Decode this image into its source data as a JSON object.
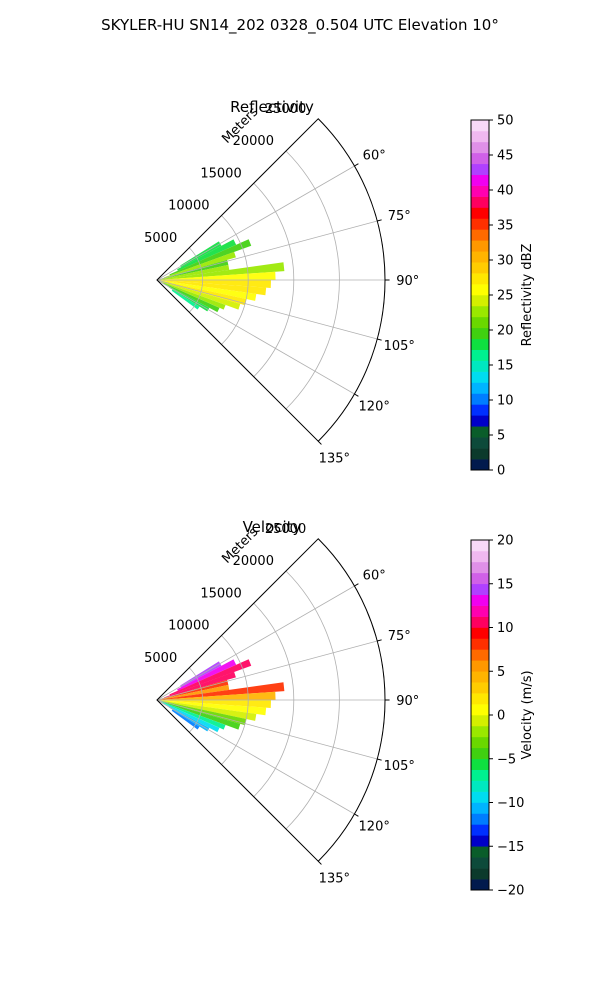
{
  "suptitle": "SKYLER-HU  SN14_202  0328_0.504 UTC Elevation 10°",
  "radial_label": "Meters",
  "chart_data": [
    {
      "type": "heatmap",
      "title": "Reflectivity",
      "colorbar_label": "Reflectivity dBZ",
      "colorbar_range": [
        0,
        50
      ],
      "colorbar_ticks": [
        "0",
        "5",
        "10",
        "15",
        "20",
        "25",
        "30",
        "35",
        "40",
        "45",
        "50"
      ],
      "colorbar_colors": [
        "#011a4d",
        "#0b3a2c",
        "#0d4a3a",
        "#0a5d2a",
        "#0000c8",
        "#0030ff",
        "#007dff",
        "#00b4ff",
        "#00dcf0",
        "#00e8c0",
        "#00f090",
        "#10e040",
        "#40d010",
        "#6ad800",
        "#9ae800",
        "#d4f000",
        "#ffff00",
        "#ffe800",
        "#ffcc00",
        "#ffb400",
        "#ff9800",
        "#ff6a00",
        "#ff3000",
        "#ff0000",
        "#ff0060",
        "#ff00b0",
        "#f000f0",
        "#b040ff",
        "#d060e8",
        "#e090e8",
        "#f0b8f0",
        "#f8d8f8"
      ],
      "theta_ticks": [
        "60°",
        "75°",
        "90°",
        "105°",
        "120°",
        "135°"
      ],
      "theta_values": [
        60,
        75,
        90,
        105,
        120,
        135
      ],
      "theta_range": [
        45,
        135
      ],
      "r_ticks": [
        "5000",
        "10000",
        "15000",
        "20000",
        "25000"
      ],
      "r_values": [
        5000,
        10000,
        15000,
        20000,
        25000
      ],
      "r_max": 25000,
      "grid": true,
      "echo_extent_m": [
        {
          "theta": 60,
          "r": [
            3000,
            8000
          ],
          "value": 18
        },
        {
          "theta": 64,
          "r": [
            2500,
            9500
          ],
          "value": 18
        },
        {
          "theta": 68,
          "r": [
            1500,
            11000
          ],
          "value": 20
        },
        {
          "theta": 72,
          "r": [
            800,
            9000
          ],
          "value": 22
        },
        {
          "theta": 76,
          "r": [
            500,
            8000
          ],
          "value": 20
        },
        {
          "theta": 80,
          "r": [
            300,
            8000
          ],
          "value": 22
        },
        {
          "theta": 84,
          "r": [
            200,
            14000
          ],
          "value": 22
        },
        {
          "theta": 88,
          "r": [
            100,
            13000
          ],
          "value": 25
        },
        {
          "theta": 92,
          "r": [
            100,
            12500
          ],
          "value": 28
        },
        {
          "theta": 96,
          "r": [
            100,
            12000
          ],
          "value": 28
        },
        {
          "theta": 100,
          "r": [
            100,
            11000
          ],
          "value": 26
        },
        {
          "theta": 104,
          "r": [
            200,
            10000
          ],
          "value": 27
        },
        {
          "theta": 108,
          "r": [
            300,
            9500
          ],
          "value": 24
        },
        {
          "theta": 112,
          "r": [
            500,
            8000
          ],
          "value": 22
        },
        {
          "theta": 116,
          "r": [
            800,
            7500
          ],
          "value": 20
        },
        {
          "theta": 120,
          "r": [
            1500,
            6500
          ],
          "value": 18
        },
        {
          "theta": 124,
          "r": [
            2000,
            5500
          ],
          "value": 16
        }
      ]
    },
    {
      "type": "heatmap",
      "title": "Velocity",
      "colorbar_label": "Velocity (m/s)",
      "colorbar_range": [
        -20,
        20
      ],
      "colorbar_ticks": [
        "−20",
        "−15",
        "−10",
        "−5",
        "0",
        "5",
        "10",
        "15",
        "20"
      ],
      "colorbar_colors": [
        "#011a4d",
        "#0b3a2c",
        "#0d4a3a",
        "#0a5d2a",
        "#0000c8",
        "#0030ff",
        "#007dff",
        "#00b4ff",
        "#00dcf0",
        "#00e8c0",
        "#00f090",
        "#10e040",
        "#40d010",
        "#6ad800",
        "#9ae800",
        "#d4f000",
        "#ffff00",
        "#ffe800",
        "#ffcc00",
        "#ffb400",
        "#ff9800",
        "#ff6a00",
        "#ff3000",
        "#ff0000",
        "#ff0060",
        "#ff00b0",
        "#f000f0",
        "#b040ff",
        "#d060e8",
        "#e090e8",
        "#f0b8f0",
        "#f8d8f8"
      ],
      "theta_ticks": [
        "60°",
        "75°",
        "90°",
        "105°",
        "120°",
        "135°"
      ],
      "theta_values": [
        60,
        75,
        90,
        105,
        120,
        135
      ],
      "theta_range": [
        45,
        135
      ],
      "r_ticks": [
        "5000",
        "10000",
        "15000",
        "20000",
        "25000"
      ],
      "r_values": [
        5000,
        10000,
        15000,
        20000,
        25000
      ],
      "r_max": 25000,
      "grid": true,
      "echo_extent_m": [
        {
          "theta": 60,
          "r": [
            3000,
            8000
          ],
          "value": 14
        },
        {
          "theta": 64,
          "r": [
            2500,
            9500
          ],
          "value": 13
        },
        {
          "theta": 68,
          "r": [
            1500,
            11000
          ],
          "value": 11
        },
        {
          "theta": 72,
          "r": [
            800,
            9000
          ],
          "value": 10
        },
        {
          "theta": 76,
          "r": [
            500,
            8000
          ],
          "value": 8
        },
        {
          "theta": 80,
          "r": [
            300,
            8000
          ],
          "value": 6
        },
        {
          "theta": 84,
          "r": [
            200,
            14000
          ],
          "value": 8
        },
        {
          "theta": 88,
          "r": [
            100,
            13000
          ],
          "value": 4
        },
        {
          "theta": 92,
          "r": [
            100,
            12500
          ],
          "value": 2
        },
        {
          "theta": 96,
          "r": [
            100,
            12000
          ],
          "value": 1
        },
        {
          "theta": 100,
          "r": [
            100,
            11000
          ],
          "value": -1
        },
        {
          "theta": 104,
          "r": [
            200,
            10000
          ],
          "value": -3
        },
        {
          "theta": 108,
          "r": [
            300,
            9500
          ],
          "value": -5
        },
        {
          "theta": 112,
          "r": [
            500,
            8000
          ],
          "value": -7
        },
        {
          "theta": 116,
          "r": [
            800,
            7500
          ],
          "value": -9
        },
        {
          "theta": 120,
          "r": [
            1500,
            6500
          ],
          "value": -11
        },
        {
          "theta": 124,
          "r": [
            2000,
            5500
          ],
          "value": -12
        }
      ]
    }
  ]
}
